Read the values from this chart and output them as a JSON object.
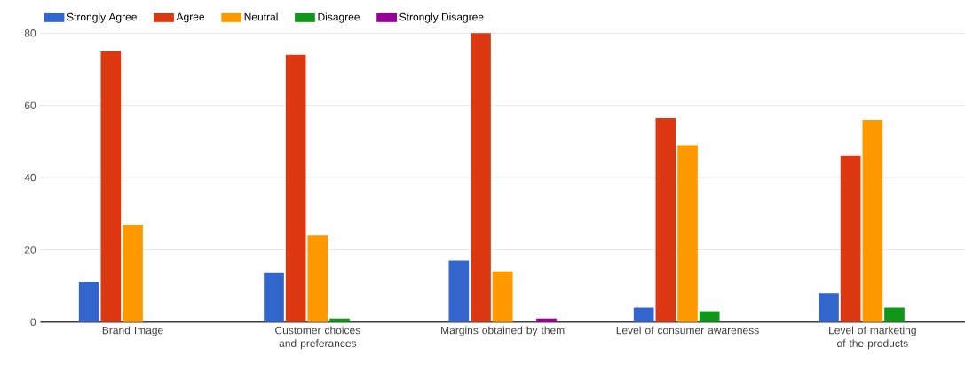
{
  "chart_data": {
    "type": "bar",
    "categories": [
      "Brand Image",
      "Customer choices and preferances",
      "Margins obtained by them",
      "Level of consumer awareness",
      "Level of marketing of the products"
    ],
    "series": [
      {
        "name": "Strongly Agree",
        "color": "#3366cc",
        "values": [
          11,
          13.5,
          17,
          4,
          8
        ]
      },
      {
        "name": "Agree",
        "color": "#dc3912",
        "values": [
          75,
          74,
          80,
          56.5,
          46
        ]
      },
      {
        "name": "Neutral",
        "color": "#ff9900",
        "values": [
          27,
          24,
          14,
          49,
          56
        ]
      },
      {
        "name": "Disagree",
        "color": "#109618",
        "values": [
          0,
          1,
          0,
          3,
          4
        ]
      },
      {
        "name": "Strongly Disagree",
        "color": "#990099",
        "values": [
          0,
          0,
          1,
          0,
          0
        ]
      }
    ],
    "ylim": [
      0,
      80
    ],
    "yticks": [
      0,
      20,
      40,
      60,
      80
    ],
    "grid": "y",
    "legend": "top left"
  }
}
